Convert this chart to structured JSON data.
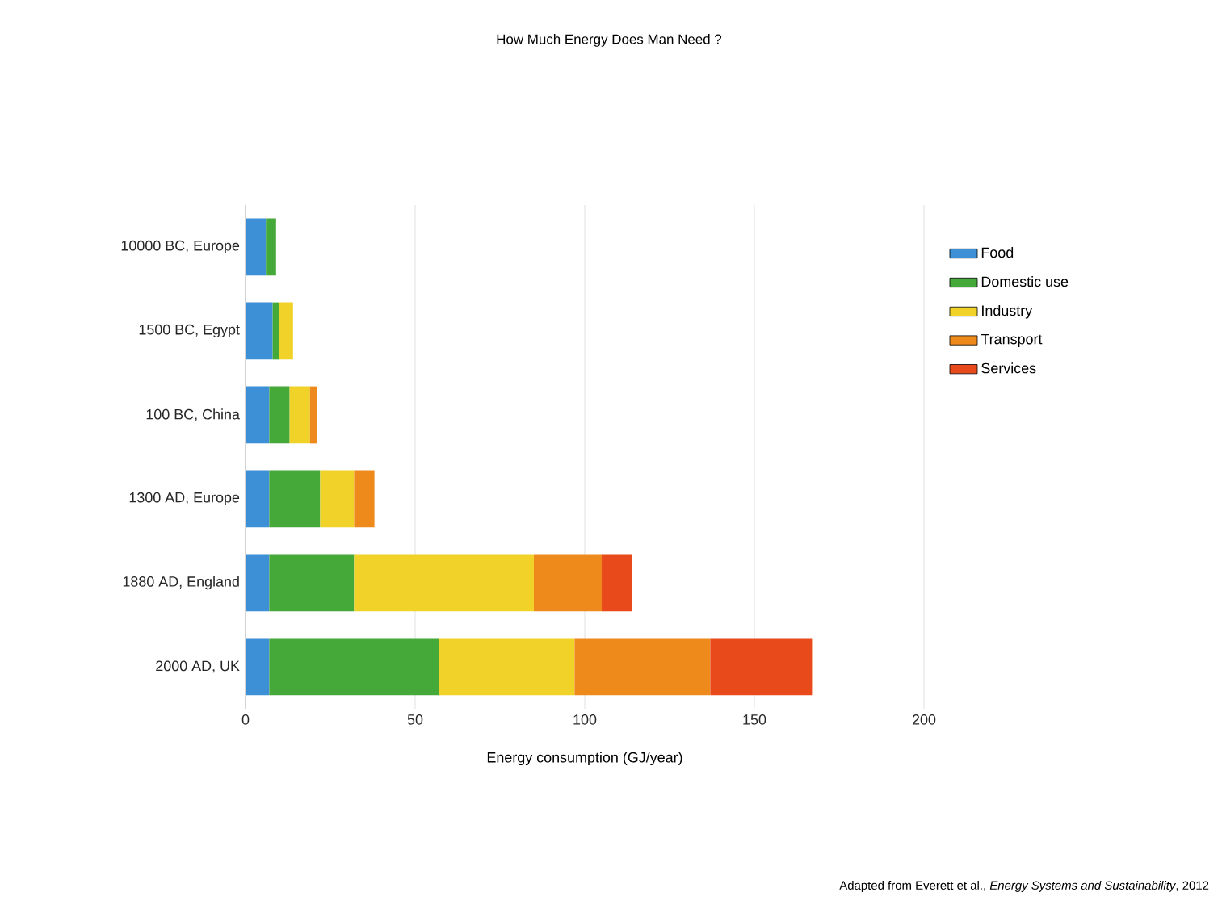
{
  "chart_data": {
    "type": "bar",
    "orientation": "horizontal",
    "stacked": true,
    "title": "How Much Energy Does Man Need ?",
    "xlabel": "Energy consumption (GJ/year)",
    "annotations": [
      "Adapted from Everett et al., *Energy Systems and Sustainability*, 2012"
    ],
    "categories": [
      "10000 BC, Europe",
      "1500 BC, Egypt",
      "100 BC, China",
      "1300 AD, Europe",
      "1880 AD, England",
      "2000 AD, UK"
    ],
    "series": [
      {
        "name": "Food",
        "color": "#3d8fd6",
        "values": [
          6,
          8,
          7,
          7,
          7,
          7
        ]
      },
      {
        "name": "Domestic use",
        "color": "#45a93a",
        "values": [
          3,
          2,
          6,
          15,
          25,
          50
        ]
      },
      {
        "name": "Industry",
        "color": "#f0d228",
        "values": [
          null,
          4,
          6,
          10,
          53,
          40
        ]
      },
      {
        "name": "Transport",
        "color": "#ee8a1c",
        "values": [
          null,
          null,
          2,
          6,
          20,
          40
        ]
      },
      {
        "name": "Services",
        "color": "#e84a1c",
        "values": [
          null,
          null,
          null,
          null,
          9,
          30
        ]
      }
    ],
    "xlim": [
      0,
      200
    ],
    "xticks": [
      0,
      50,
      100,
      150,
      200
    ],
    "grid": "x",
    "legend": "right"
  }
}
